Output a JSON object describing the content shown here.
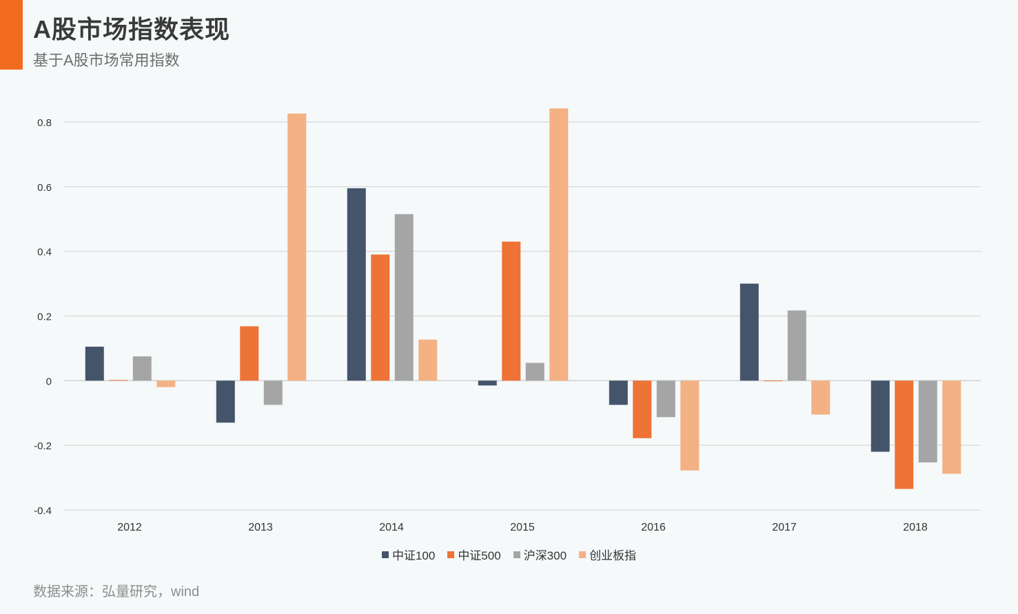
{
  "header": {
    "title": "A股市场指数表现",
    "subtitle": "基于A股市场常用指数"
  },
  "footer": {
    "source": "数据来源：弘量研究，wind"
  },
  "colors": {
    "accent": "#f26b1f",
    "series": [
      "#44546a",
      "#ed7336",
      "#a5a5a5",
      "#f4b183"
    ]
  },
  "chart_data": {
    "type": "bar",
    "categories": [
      "2012",
      "2013",
      "2014",
      "2015",
      "2016",
      "2017",
      "2018"
    ],
    "series": [
      {
        "name": "中证100",
        "values": [
          0.105,
          -0.13,
          0.595,
          -0.015,
          -0.075,
          0.3,
          -0.22
        ]
      },
      {
        "name": "中证500",
        "values": [
          0.002,
          0.168,
          0.39,
          0.43,
          -0.178,
          -0.002,
          -0.335
        ]
      },
      {
        "name": "沪深300",
        "values": [
          0.075,
          -0.075,
          0.515,
          0.055,
          -0.113,
          0.217,
          -0.253
        ]
      },
      {
        "name": "创业板指",
        "values": [
          -0.02,
          0.826,
          0.127,
          0.842,
          -0.278,
          -0.105,
          -0.288
        ]
      }
    ],
    "yticks": [
      "0.8",
      "0.6",
      "0.4",
      "0.2",
      "0",
      "-0.2",
      "-0.4"
    ],
    "ylim": [
      -0.4,
      0.8
    ],
    "grid": true,
    "legend": "bottom"
  }
}
